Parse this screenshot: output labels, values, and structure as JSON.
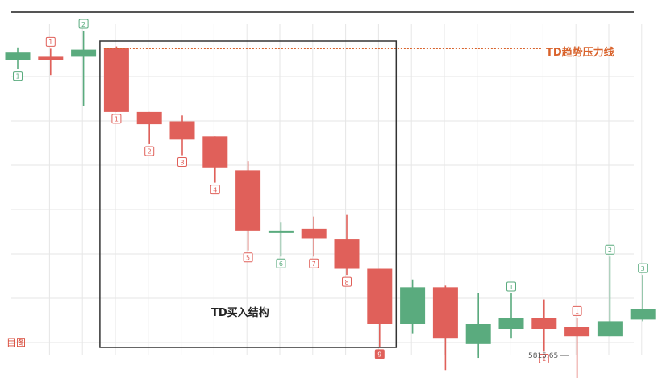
{
  "chart_data": {
    "type": "candlestick",
    "title": "",
    "annotations": {
      "resistance_label": "TD趋势压力线",
      "box_label": "TD买入结构",
      "low_price_label": "5815.65",
      "partial_left_label": "目图"
    },
    "ylim": [
      0,
      100
    ],
    "colors": {
      "up": "#5aab7e",
      "down": "#e0605a",
      "resistance": "#d9622b",
      "box": "#333333",
      "grid": "#e6e6e6"
    },
    "candles": [
      {
        "o": 88.9,
        "c": 86.7,
        "h": 90.5,
        "l": 83.8,
        "color": "up",
        "label": "1",
        "label_pos": "below"
      },
      {
        "o": 87.6,
        "c": 86.7,
        "h": 90.1,
        "l": 81.9,
        "color": "down",
        "label": "1",
        "label_pos": "above"
      },
      {
        "o": 87.6,
        "c": 89.8,
        "h": 95.7,
        "l": 72.4,
        "color": "up",
        "label": "2",
        "label_pos": "above"
      },
      {
        "o": 90.2,
        "c": 70.5,
        "h": 90.8,
        "l": 70.5,
        "color": "down",
        "label": "1",
        "label_pos": "below"
      },
      {
        "o": 70.5,
        "c": 66.7,
        "h": 70.5,
        "l": 60.5,
        "color": "down",
        "label": "2",
        "label_pos": "below"
      },
      {
        "o": 67.6,
        "c": 61.9,
        "h": 69.4,
        "l": 57.1,
        "color": "down",
        "label": "3",
        "label_pos": "below"
      },
      {
        "o": 62.9,
        "c": 53.3,
        "h": 62.9,
        "l": 48.6,
        "color": "down",
        "label": "4",
        "label_pos": "below"
      },
      {
        "o": 52.4,
        "c": 33.8,
        "h": 55.2,
        "l": 27.6,
        "color": "down",
        "label": "5",
        "label_pos": "below"
      },
      {
        "o": 33.8,
        "c": 33.3,
        "h": 36.2,
        "l": 25.7,
        "color": "up",
        "label": "6",
        "label_pos": "below"
      },
      {
        "o": 34.3,
        "c": 31.4,
        "h": 38.1,
        "l": 25.7,
        "color": "down",
        "label": "7",
        "label_pos": "below"
      },
      {
        "o": 31.0,
        "c": 21.9,
        "h": 38.6,
        "l": 20.0,
        "color": "down",
        "label": "8",
        "label_pos": "below"
      },
      {
        "o": 21.9,
        "c": 4.8,
        "h": 21.9,
        "l": -2.4,
        "color": "down",
        "label": "9",
        "label_pos": "below",
        "highlight": true
      },
      {
        "o": 4.8,
        "c": 16.2,
        "h": 18.6,
        "l": 1.9,
        "color": "up"
      },
      {
        "o": 16.2,
        "c": 0.5,
        "h": 16.7,
        "l": -9.5,
        "color": "down"
      },
      {
        "o": -1.4,
        "c": 4.8,
        "h": 14.3,
        "l": -5.7,
        "color": "up"
      },
      {
        "o": 3.3,
        "c": 6.7,
        "h": 14.3,
        "l": 0.5,
        "color": "up",
        "label": "1",
        "label_pos": "above"
      },
      {
        "o": 6.7,
        "c": 3.3,
        "h": 12.4,
        "l": -3.8,
        "color": "down",
        "label": "1",
        "label_pos": "below"
      },
      {
        "o": 3.8,
        "c": 1.0,
        "h": 6.7,
        "l": -14.3,
        "color": "down",
        "label": "1",
        "label_pos": "above"
      },
      {
        "o": 1.0,
        "c": 5.7,
        "h": 25.7,
        "l": 1.0,
        "color": "up",
        "label": "2",
        "label_pos": "above"
      },
      {
        "o": 6.2,
        "c": 9.5,
        "h": 20.0,
        "l": 5.7,
        "color": "up",
        "label": "3",
        "label_pos": "above"
      }
    ],
    "resistance_y": 90.2,
    "box": {
      "from_index": 3,
      "to_index": 11
    }
  }
}
